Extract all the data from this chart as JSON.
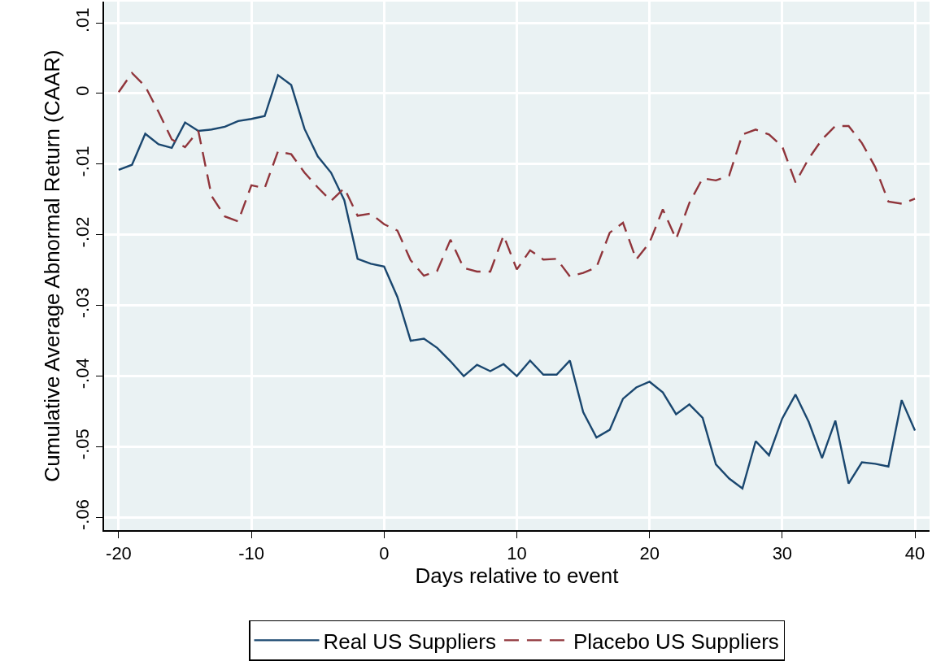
{
  "chart_data": {
    "type": "line",
    "xlabel": "Days relative to event",
    "ylabel": "Cumulative Average Abnormal Return (CAAR)",
    "x": [
      -20,
      -19,
      -18,
      -17,
      -16,
      -15,
      -14,
      -13,
      -12,
      -11,
      -10,
      -9,
      -8,
      -7,
      -6,
      -5,
      -4,
      -3,
      -2,
      -1,
      0,
      1,
      2,
      3,
      4,
      5,
      6,
      7,
      8,
      9,
      10,
      11,
      12,
      13,
      14,
      15,
      16,
      17,
      18,
      19,
      20,
      21,
      22,
      23,
      24,
      25,
      26,
      27,
      28,
      29,
      30,
      31,
      32,
      33,
      34,
      35,
      36,
      37,
      38,
      39,
      40
    ],
    "series": [
      {
        "name": "Real US Suppliers",
        "color": "#1a476f",
        "line_style": "solid",
        "values": [
          -0.0108,
          -0.0101,
          -0.0057,
          -0.0072,
          -0.0077,
          -0.0041,
          -0.0053,
          -0.0051,
          -0.0047,
          -0.0039,
          -0.0036,
          -0.0032,
          0.0026,
          0.0012,
          -0.005,
          -0.0089,
          -0.0112,
          -0.0151,
          -0.0234,
          -0.0241,
          -0.0245,
          -0.0288,
          -0.035,
          -0.0347,
          -0.036,
          -0.0379,
          -0.04,
          -0.0384,
          -0.0393,
          -0.0383,
          -0.04,
          -0.0378,
          -0.0398,
          -0.0398,
          -0.0378,
          -0.0451,
          -0.0487,
          -0.0476,
          -0.0432,
          -0.0416,
          -0.0408,
          -0.0423,
          -0.0454,
          -0.044,
          -0.0459,
          -0.0525,
          -0.0545,
          -0.0559,
          -0.0492,
          -0.0512,
          -0.046,
          -0.0426,
          -0.0465,
          -0.0516,
          -0.0463,
          -0.0552,
          -0.0522,
          -0.0524,
          -0.0528,
          -0.0434,
          -0.0477
        ]
      },
      {
        "name": "Placebo US Suppliers",
        "color": "#90353b",
        "line_style": "dashed",
        "values": [
          0.0002,
          0.0029,
          0.001,
          -0.0026,
          -0.0065,
          -0.0076,
          -0.0053,
          -0.0145,
          -0.0174,
          -0.0181,
          -0.013,
          -0.0134,
          -0.0082,
          -0.0086,
          -0.0112,
          -0.0133,
          -0.0152,
          -0.0134,
          -0.0173,
          -0.017,
          -0.0185,
          -0.0194,
          -0.0236,
          -0.0258,
          -0.0251,
          -0.0207,
          -0.0247,
          -0.0252,
          -0.0252,
          -0.0201,
          -0.0249,
          -0.0222,
          -0.0235,
          -0.0234,
          -0.0259,
          -0.0254,
          -0.0246,
          -0.0197,
          -0.0183,
          -0.0235,
          -0.0211,
          -0.0164,
          -0.0206,
          -0.0155,
          -0.012,
          -0.0123,
          -0.0116,
          -0.0058,
          -0.0051,
          -0.0058,
          -0.0075,
          -0.0126,
          -0.0092,
          -0.0065,
          -0.0046,
          -0.0046,
          -0.007,
          -0.0104,
          -0.0153,
          -0.0156,
          -0.0149
        ]
      }
    ],
    "xlim": [
      -21.1,
      41.1
    ],
    "xticks": [
      -20,
      -10,
      0,
      10,
      20,
      30,
      40
    ],
    "ylim": [
      -0.0618,
      0.013
    ],
    "yticks": [
      {
        "value": 0.01,
        "label": ".01"
      },
      0,
      {
        "value": -0.01,
        "label": "-.01"
      },
      {
        "value": -0.02,
        "label": "-.02"
      },
      {
        "value": -0.03,
        "label": "-.03"
      },
      {
        "value": -0.04,
        "label": "-.04"
      },
      {
        "value": -0.05,
        "label": "-.05"
      },
      {
        "value": -0.06,
        "label": "-.06"
      }
    ],
    "grid": true,
    "legend": "bottom",
    "marker": "none"
  }
}
